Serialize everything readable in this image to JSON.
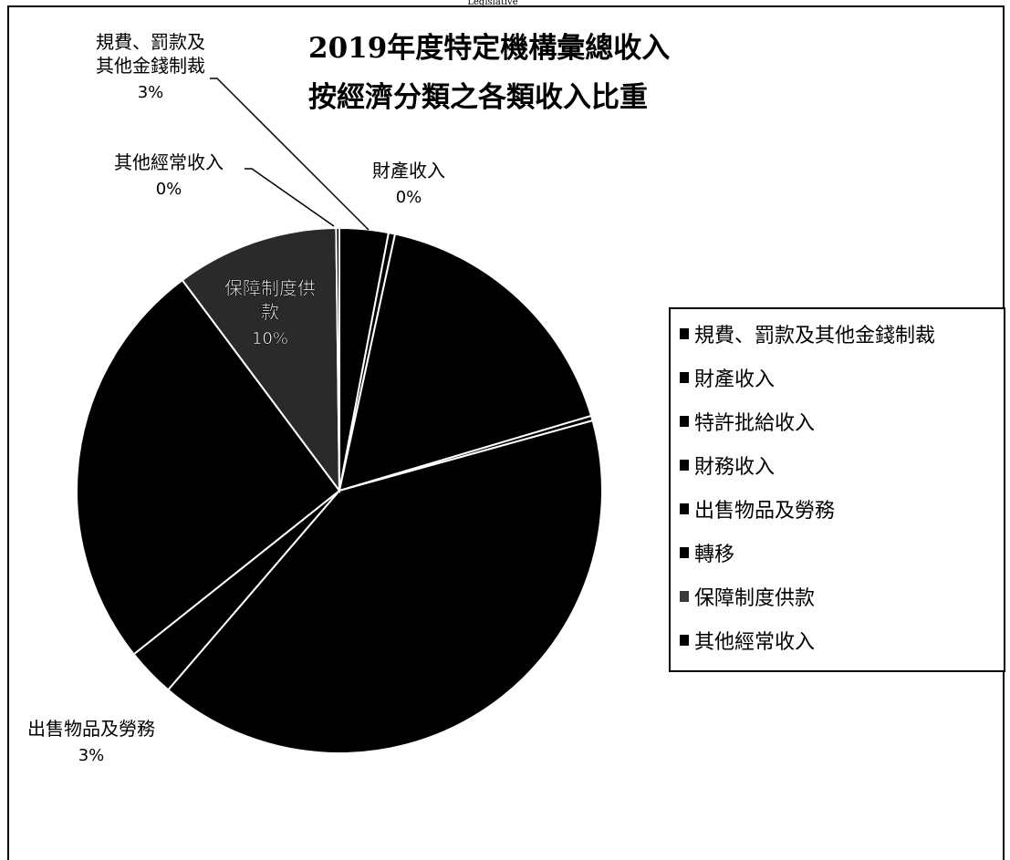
{
  "header_text": "Legislative",
  "chart_data": {
    "type": "pie",
    "title_lines": [
      "2019年度特定機構彙總收入",
      "按經濟分類之各類收入比重"
    ],
    "legend_placement": "right",
    "slices": [
      {
        "name": "規費、罰款及其他金錢制裁",
        "value": 3,
        "color": "#000000",
        "label": [
          "規費、罰款及",
          "其他金錢制裁"
        ],
        "pct": "3%"
      },
      {
        "name": "財產收入",
        "value": 0.4,
        "color": "#000000",
        "label": [
          "財產收入"
        ],
        "pct": "0%"
      },
      {
        "name": "特許批給收入",
        "value": 17,
        "color": "#000000",
        "label": null,
        "pct": null
      },
      {
        "name": "財務收入",
        "value": 0.3,
        "color": "#000000",
        "label": null,
        "pct": null
      },
      {
        "name": "轉移",
        "value": 40.6,
        "color": "#000000",
        "label": null,
        "pct": null
      },
      {
        "name": "出售物品及勞務",
        "value": 3,
        "color": "#000000",
        "label": [
          "出售物品及勞務"
        ],
        "pct": "3%"
      },
      {
        "name": "特許批給收入-2",
        "value": 25.5,
        "color": "#000000",
        "label": null,
        "pct": null
      },
      {
        "name": "保障制度供款",
        "value": 10,
        "color": "#2a2a2a",
        "label": [
          "保障制度供",
          "款"
        ],
        "pct": "10%"
      },
      {
        "name": "其他經常收入",
        "value": 0.2,
        "color": "#000000",
        "label": [
          "其他經常收入"
        ],
        "pct": "0%"
      }
    ],
    "legend": [
      {
        "label": "規費、罰款及其他金錢制裁",
        "color": "#000000"
      },
      {
        "label": "財產收入",
        "color": "#000000"
      },
      {
        "label": "特許批給收入",
        "color": "#000000"
      },
      {
        "label": "財務收入",
        "color": "#000000"
      },
      {
        "label": "出售物品及勞務",
        "color": "#000000"
      },
      {
        "label": "轉移",
        "color": "#000000"
      },
      {
        "label": "保障制度供款",
        "color": "#3a3a3a"
      },
      {
        "label": "其他經常收入",
        "color": "#000000"
      }
    ]
  }
}
